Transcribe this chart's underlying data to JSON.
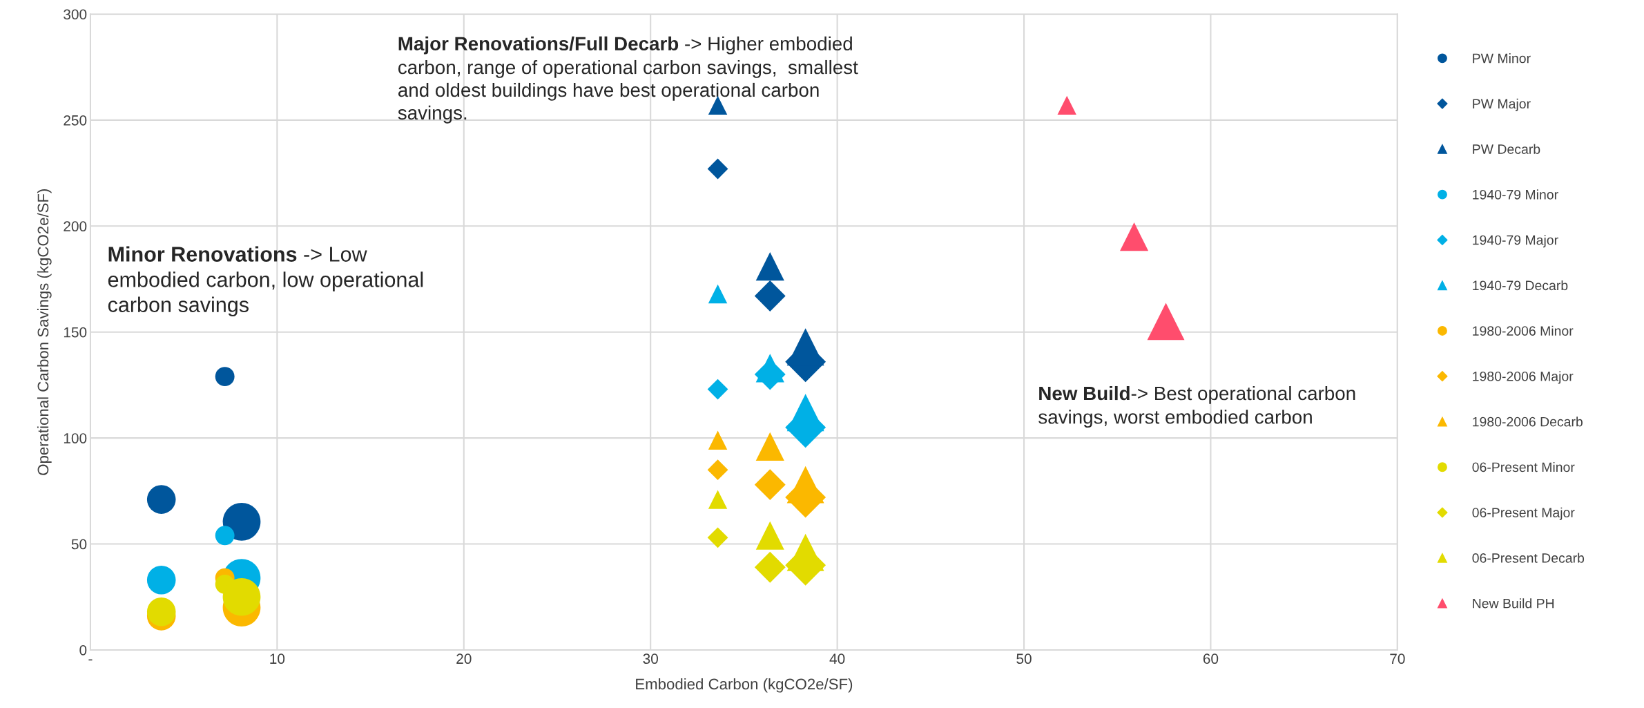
{
  "chart_data": {
    "type": "bubble",
    "xlabel": "Embodied Carbon (kgCO2e/SF)",
    "ylabel": "Operational Carbon Savings (kgCO2e/SF)",
    "xlim": [
      0,
      70
    ],
    "xticks": [
      {
        "value": 0,
        "label": "-"
      },
      10,
      20,
      30,
      40,
      50,
      60,
      70
    ],
    "ylim": [
      0,
      300
    ],
    "yticks": [
      0,
      50,
      100,
      150,
      200,
      250,
      300
    ],
    "grid": true,
    "legend": "right",
    "series": [
      {
        "name": "PW Minor",
        "color": "#00569c",
        "marker": "circle",
        "x": [
          7.2,
          3.8,
          8.1
        ],
        "values": [
          129,
          71,
          60.5
        ],
        "sizes": [
          0.26,
          0.58,
          1
        ]
      },
      {
        "name": "PW Major",
        "color": "#00569c",
        "marker": "diamond",
        "x": [
          33.6,
          36.4,
          38.3
        ],
        "values": [
          227,
          167,
          136
        ],
        "sizes": [
          0.19,
          0.43,
          0.74
        ]
      },
      {
        "name": "PW Decarb",
        "color": "#00569c",
        "marker": "triangle",
        "x": [
          33.6,
          36.4,
          38.3
        ],
        "values": [
          257,
          181,
          143
        ],
        "sizes": [
          0.16,
          0.36,
          0.62
        ]
      },
      {
        "name": "1940-79 Minor",
        "color": "#00b0e6",
        "marker": "circle",
        "x": [
          7.2,
          3.8,
          8.1
        ],
        "values": [
          54,
          33,
          34
        ],
        "sizes": [
          0.26,
          0.58,
          1
        ]
      },
      {
        "name": "1940-79 Major",
        "color": "#00b0e6",
        "marker": "diamond",
        "x": [
          33.6,
          36.4,
          38.3
        ],
        "values": [
          123,
          130,
          105
        ],
        "sizes": [
          0.19,
          0.43,
          0.74
        ]
      },
      {
        "name": "1940-79 Decarb",
        "color": "#00b0e6",
        "marker": "triangle",
        "x": [
          33.6,
          36.4,
          38.3
        ],
        "values": [
          168,
          133,
          112
        ],
        "sizes": [
          0.16,
          0.36,
          0.62
        ]
      },
      {
        "name": "1980-2006 Minor",
        "color": "#fbb800",
        "marker": "circle",
        "x": [
          7.2,
          3.8,
          8.1
        ],
        "values": [
          34,
          16,
          20
        ],
        "sizes": [
          0.26,
          0.58,
          1
        ]
      },
      {
        "name": "1980-2006 Major",
        "color": "#fbb800",
        "marker": "diamond",
        "x": [
          33.6,
          36.4,
          38.3
        ],
        "values": [
          85,
          78,
          72
        ],
        "sizes": [
          0.19,
          0.43,
          0.74
        ]
      },
      {
        "name": "1980-2006 Decarb",
        "color": "#fbb800",
        "marker": "triangle",
        "x": [
          33.6,
          36.4,
          38.3
        ],
        "values": [
          99,
          96,
          78
        ],
        "sizes": [
          0.16,
          0.36,
          0.62
        ]
      },
      {
        "name": "06-Present Minor",
        "color": "#e2db00",
        "marker": "circle",
        "x": [
          7.2,
          3.8,
          8.1
        ],
        "values": [
          31,
          18,
          25
        ],
        "sizes": [
          0.26,
          0.58,
          1
        ]
      },
      {
        "name": "06-Present Major",
        "color": "#e2db00",
        "marker": "diamond",
        "x": [
          33.6,
          36.4,
          38.3
        ],
        "values": [
          53,
          39,
          40
        ],
        "sizes": [
          0.19,
          0.43,
          0.74
        ]
      },
      {
        "name": "06-Present Decarb",
        "color": "#e2db00",
        "marker": "triangle",
        "x": [
          33.6,
          36.4,
          38.3
        ],
        "values": [
          71,
          54,
          46
        ],
        "sizes": [
          0.16,
          0.36,
          0.62
        ]
      },
      {
        "name": "New Build PH",
        "color": "#ff4d6d",
        "marker": "triangle",
        "x": [
          52.3,
          55.9,
          57.6
        ],
        "values": [
          257,
          195,
          155
        ],
        "sizes": [
          0.16,
          0.36,
          0.62
        ]
      }
    ],
    "annotations": [
      "Major Renovations/Full Decarb",
      " -> Higher embodied\ncarbon, range of operational carbon savings,  smallest\nand oldest buildings have best operational carbon\nsavings.",
      "Minor Renovations",
      " -> Low\nembodied carbon, low operational\ncarbon savings",
      "New Build",
      "-> Best operational carbon\nsavings, worst embodied carbon"
    ]
  }
}
